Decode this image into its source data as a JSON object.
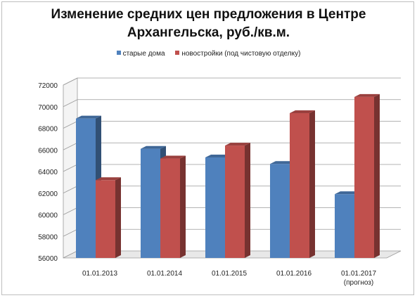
{
  "chart_data": {
    "type": "bar",
    "title_line1": "Изменение средних цен предложения в Центре",
    "title_line2": "Архангельска, руб./кв.м.",
    "categories": [
      "01.01.2013",
      "01.01.2014",
      "01.01.2015",
      "01.01.2016",
      "01.01.2017"
    ],
    "category_sublabels": [
      "",
      "",
      "",
      "",
      "(прогноз)"
    ],
    "series": [
      {
        "name": "старые дома",
        "values": [
          68900,
          66100,
          65300,
          64700,
          61900
        ],
        "color": "#4f81bd"
      },
      {
        "name": "новостройки (под чистовую отделку)",
        "values": [
          63200,
          65200,
          66400,
          69400,
          70900
        ],
        "color": "#c0504d"
      }
    ],
    "ylim": [
      56000,
      72000
    ],
    "yticks": [
      "56000",
      "58000",
      "60000",
      "62000",
      "64000",
      "66000",
      "68000",
      "70000",
      "72000"
    ],
    "grid": true,
    "legend_position": "top",
    "style": "3d-column"
  }
}
